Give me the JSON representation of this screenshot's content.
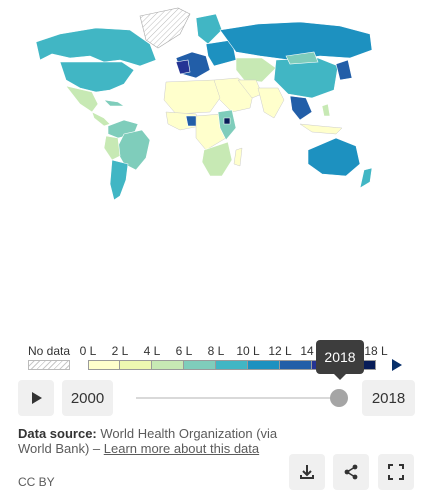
{
  "legend": {
    "no_data_label": "No data",
    "ticks": [
      "0 L",
      "2 L",
      "4 L",
      "6 L",
      "8 L",
      "10 L",
      "12 L",
      "14 L",
      "16 L",
      "18 L"
    ],
    "colors": [
      "#ffffcc",
      "#edf8b1",
      "#c7e9b4",
      "#7fcdbb",
      "#41b6c4",
      "#1d91c0",
      "#225ea8",
      "#253494",
      "#081d58"
    ],
    "no_data_color": "hatched-grey"
  },
  "timeline": {
    "start_year": "2000",
    "end_year": "2018",
    "selected_year": "2018",
    "tooltip": "2018",
    "position": 1.0
  },
  "source": {
    "label": "Data source:",
    "text": "World Health Organization (via World Bank) – ",
    "link": "Learn more about this data"
  },
  "license": "CC BY",
  "icons": {
    "play": "play-icon",
    "download": "download-icon",
    "share": "share-icon",
    "fullscreen": "fullscreen-icon"
  }
}
